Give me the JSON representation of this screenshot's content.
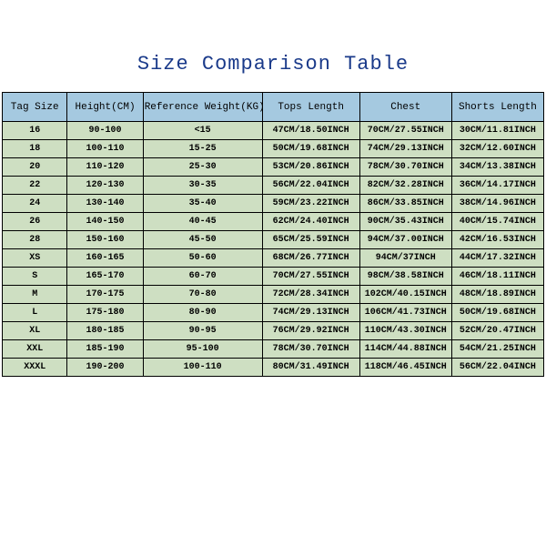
{
  "title": "Size Comparison Table",
  "columns": [
    "Tag Size",
    "Height(CM)",
    "Reference Weight(KG)",
    "Tops Length",
    "Chest",
    "Shorts Length"
  ],
  "rows": [
    [
      "16",
      "90-100",
      "<15",
      "47CM/18.50INCH",
      "70CM/27.55INCH",
      "30CM/11.81INCH"
    ],
    [
      "18",
      "100-110",
      "15-25",
      "50CM/19.68INCH",
      "74CM/29.13INCH",
      "32CM/12.60INCH"
    ],
    [
      "20",
      "110-120",
      "25-30",
      "53CM/20.86INCH",
      "78CM/30.70INCH",
      "34CM/13.38INCH"
    ],
    [
      "22",
      "120-130",
      "30-35",
      "56CM/22.04INCH",
      "82CM/32.28INCH",
      "36CM/14.17INCH"
    ],
    [
      "24",
      "130-140",
      "35-40",
      "59CM/23.22INCH",
      "86CM/33.85INCH",
      "38CM/14.96INCH"
    ],
    [
      "26",
      "140-150",
      "40-45",
      "62CM/24.40INCH",
      "90CM/35.43INCH",
      "40CM/15.74INCH"
    ],
    [
      "28",
      "150-160",
      "45-50",
      "65CM/25.59INCH",
      "94CM/37.00INCH",
      "42CM/16.53INCH"
    ],
    [
      "XS",
      "160-165",
      "50-60",
      "68CM/26.77INCH",
      "94CM/37INCH",
      "44CM/17.32INCH"
    ],
    [
      "S",
      "165-170",
      "60-70",
      "70CM/27.55INCH",
      "98CM/38.58INCH",
      "46CM/18.11INCH"
    ],
    [
      "M",
      "170-175",
      "70-80",
      "72CM/28.34INCH",
      "102CM/40.15INCH",
      "48CM/18.89INCH"
    ],
    [
      "L",
      "175-180",
      "80-90",
      "74CM/29.13INCH",
      "106CM/41.73INCH",
      "50CM/19.68INCH"
    ],
    [
      "XL",
      "180-185",
      "90-95",
      "76CM/29.92INCH",
      "110CM/43.30INCH",
      "52CM/20.47INCH"
    ],
    [
      "XXL",
      "185-190",
      "95-100",
      "78CM/30.70INCH",
      "114CM/44.88INCH",
      "54CM/21.25INCH"
    ],
    [
      "XXXL",
      "190-200",
      "100-110",
      "80CM/31.49INCH",
      "118CM/46.45INCH",
      "56CM/22.04INCH"
    ]
  ],
  "colors": {
    "title": "#1a3a8a",
    "header_bg": "#a5c9e0",
    "row_bg": "#cedfc2",
    "border": "#000000",
    "background": "#ffffff"
  },
  "col_widths_pct": [
    12,
    14,
    22,
    18,
    17,
    17
  ],
  "font_family": "Courier New",
  "title_fontsize": 22,
  "header_fontsize": 11,
  "cell_fontsize": 10
}
